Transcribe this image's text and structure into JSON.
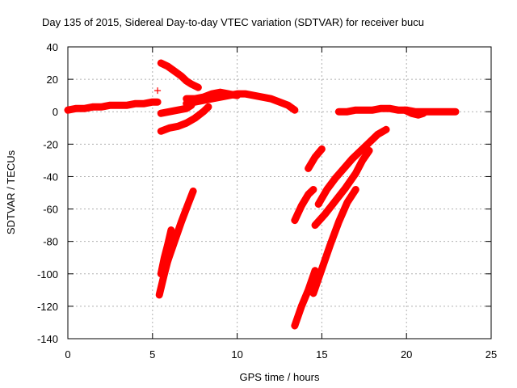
{
  "chart_data": {
    "type": "scatter",
    "title": "Day 135 of 2015, Sidereal Day-to-day VTEC variation (SDTVAR) for receiver bucu",
    "xlabel": "GPS time / hours",
    "ylabel": "SDTVAR / TECUs",
    "xlim": [
      0,
      25
    ],
    "ylim": [
      -140,
      40
    ],
    "xticks": [
      0,
      5,
      10,
      15,
      20,
      25
    ],
    "yticks": [
      -140,
      -120,
      -100,
      -80,
      -60,
      -40,
      -20,
      0,
      20,
      40
    ],
    "grid": true,
    "marker": "+",
    "color": "#ff0000",
    "series": [
      {
        "x": [
          0.0,
          0.5,
          1.0,
          1.5,
          2.0,
          2.5,
          3.0,
          3.5,
          4.0,
          4.5,
          5.0,
          5.3
        ],
        "y": [
          1,
          2,
          2,
          3,
          3,
          4,
          4,
          4,
          5,
          5,
          6,
          6
        ]
      },
      {
        "x": [
          5.5,
          5.9,
          6.3,
          6.7,
          7.0,
          7.3,
          7.7
        ],
        "y": [
          30,
          28,
          25,
          22,
          19,
          17,
          15
        ]
      },
      {
        "x": [
          5.3
        ],
        "y": [
          13
        ]
      },
      {
        "x": [
          5.5,
          6.0,
          6.5,
          7.0,
          7.5,
          8.0,
          8.3
        ],
        "y": [
          -12,
          -10,
          -9,
          -7,
          -4,
          0,
          3
        ]
      },
      {
        "x": [
          5.5,
          6.0,
          6.5,
          7.0,
          7.3
        ],
        "y": [
          -1,
          0,
          1,
          2,
          4
        ]
      },
      {
        "x": [
          7.0,
          7.5,
          8.0,
          8.5,
          9.0,
          9.5,
          10.0
        ],
        "y": [
          8,
          8,
          9,
          11,
          12,
          11,
          10
        ]
      },
      {
        "x": [
          7.0,
          7.5,
          8.0,
          8.5,
          9.0,
          9.5,
          10.0,
          10.5,
          11.0,
          11.5,
          12.0,
          12.5,
          13.0,
          13.4
        ],
        "y": [
          5,
          6,
          7,
          8,
          9,
          10,
          11,
          11,
          10,
          9,
          8,
          6,
          4,
          1
        ]
      },
      {
        "x": [
          5.4,
          5.7,
          6.0,
          6.3
        ],
        "y": [
          -113,
          -100,
          -88,
          -75
        ]
      },
      {
        "x": [
          5.5,
          5.7,
          5.9,
          6.1
        ],
        "y": [
          -100,
          -90,
          -82,
          -73
        ]
      },
      {
        "x": [
          5.9,
          6.3,
          6.7,
          7.1,
          7.4
        ],
        "y": [
          -92,
          -80,
          -68,
          -57,
          -49
        ]
      },
      {
        "x": [
          13.4,
          13.8,
          14.2,
          14.6
        ],
        "y": [
          -132,
          -120,
          -110,
          -98
        ]
      },
      {
        "x": [
          13.4,
          13.8,
          14.2,
          14.5
        ],
        "y": [
          -67,
          -58,
          -51,
          -48
        ]
      },
      {
        "x": [
          14.2,
          14.6,
          15.0
        ],
        "y": [
          -35,
          -28,
          -23
        ]
      },
      {
        "x": [
          14.5,
          15.0,
          15.5,
          16.0,
          16.5,
          17.0
        ],
        "y": [
          -112,
          -97,
          -82,
          -68,
          -56,
          -48
        ]
      },
      {
        "x": [
          14.8,
          15.3,
          15.8,
          16.3,
          16.8,
          17.3,
          17.8,
          18.3,
          18.8
        ],
        "y": [
          -57,
          -48,
          -41,
          -35,
          -29,
          -24,
          -19,
          -14,
          -11
        ]
      },
      {
        "x": [
          14.6,
          15.2,
          15.8,
          16.4,
          17.0,
          17.4,
          17.8
        ],
        "y": [
          -70,
          -63,
          -55,
          -47,
          -38,
          -30,
          -24
        ]
      },
      {
        "x": [
          16.0,
          16.5,
          17.0,
          17.5,
          18.0,
          18.5,
          19.0,
          19.5,
          20.0,
          20.5,
          21.0,
          21.5,
          22.0,
          22.5,
          22.9
        ],
        "y": [
          0,
          0,
          1,
          1,
          1,
          2,
          2,
          1,
          1,
          0,
          0,
          0,
          0,
          0,
          0
        ]
      },
      {
        "x": [
          19.9,
          20.3,
          20.7,
          21.0
        ],
        "y": [
          1,
          -1,
          -2,
          -1
        ]
      }
    ]
  }
}
